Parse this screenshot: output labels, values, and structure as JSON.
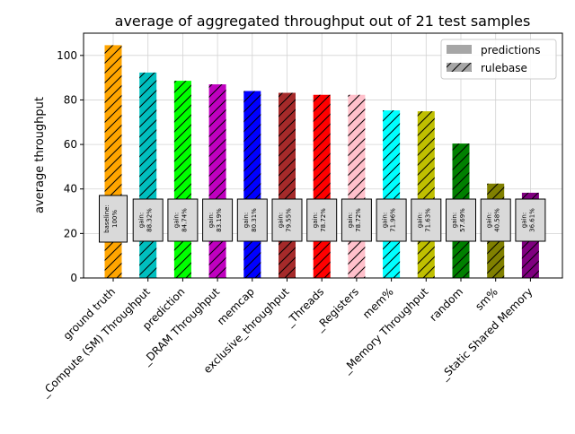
{
  "chart_data": {
    "type": "bar",
    "title": "average of aggregated throughput out of 21 test samples",
    "ylabel": "average throughput",
    "xlabel": "",
    "ylim": [
      0,
      110
    ],
    "yticks": [
      0,
      20,
      40,
      60,
      80,
      100
    ],
    "grid": true,
    "legend_position": "top-right",
    "categories": [
      "ground truth",
      "_Compute (SM) Throughput",
      "prediction",
      "_DRAM Throughput",
      "memcap",
      "exclusive_throughput",
      "_Threads",
      "_Registers",
      "mem%",
      "_Memory Throughput",
      "random",
      "sm%",
      "_Static Shared Memory"
    ],
    "values": [
      104.6,
      92.3,
      88.6,
      87.0,
      84.0,
      83.2,
      82.3,
      82.3,
      75.3,
      74.9,
      60.4,
      42.4,
      38.3
    ],
    "colors": [
      "#ffa500",
      "#00bfbf",
      "#00ff00",
      "#bf00bf",
      "#0000ff",
      "#a52a2a",
      "#ff0000",
      "#ffc0cb",
      "#00ffff",
      "#bfbf00",
      "#008000",
      "#808000",
      "#800080"
    ],
    "annotations": [
      [
        "baseline:",
        "100%"
      ],
      [
        "gain:",
        "88.32%"
      ],
      [
        "gain:",
        "84.74%"
      ],
      [
        "gain:",
        "83.19%"
      ],
      [
        "gain:",
        "80.31%"
      ],
      [
        "gain:",
        "79.55%"
      ],
      [
        "gain:",
        "78.72%"
      ],
      [
        "gain:",
        "78.72%"
      ],
      [
        "gain:",
        "71.96%"
      ],
      [
        "gain:",
        "71.63%"
      ],
      [
        "gain:",
        "57.69%"
      ],
      [
        "gain:",
        "40.58%"
      ],
      [
        "gain:",
        "36.61%"
      ]
    ],
    "legend": [
      {
        "label": "predictions",
        "hatch": false
      },
      {
        "label": "rulebase",
        "hatch": true
      }
    ]
  }
}
